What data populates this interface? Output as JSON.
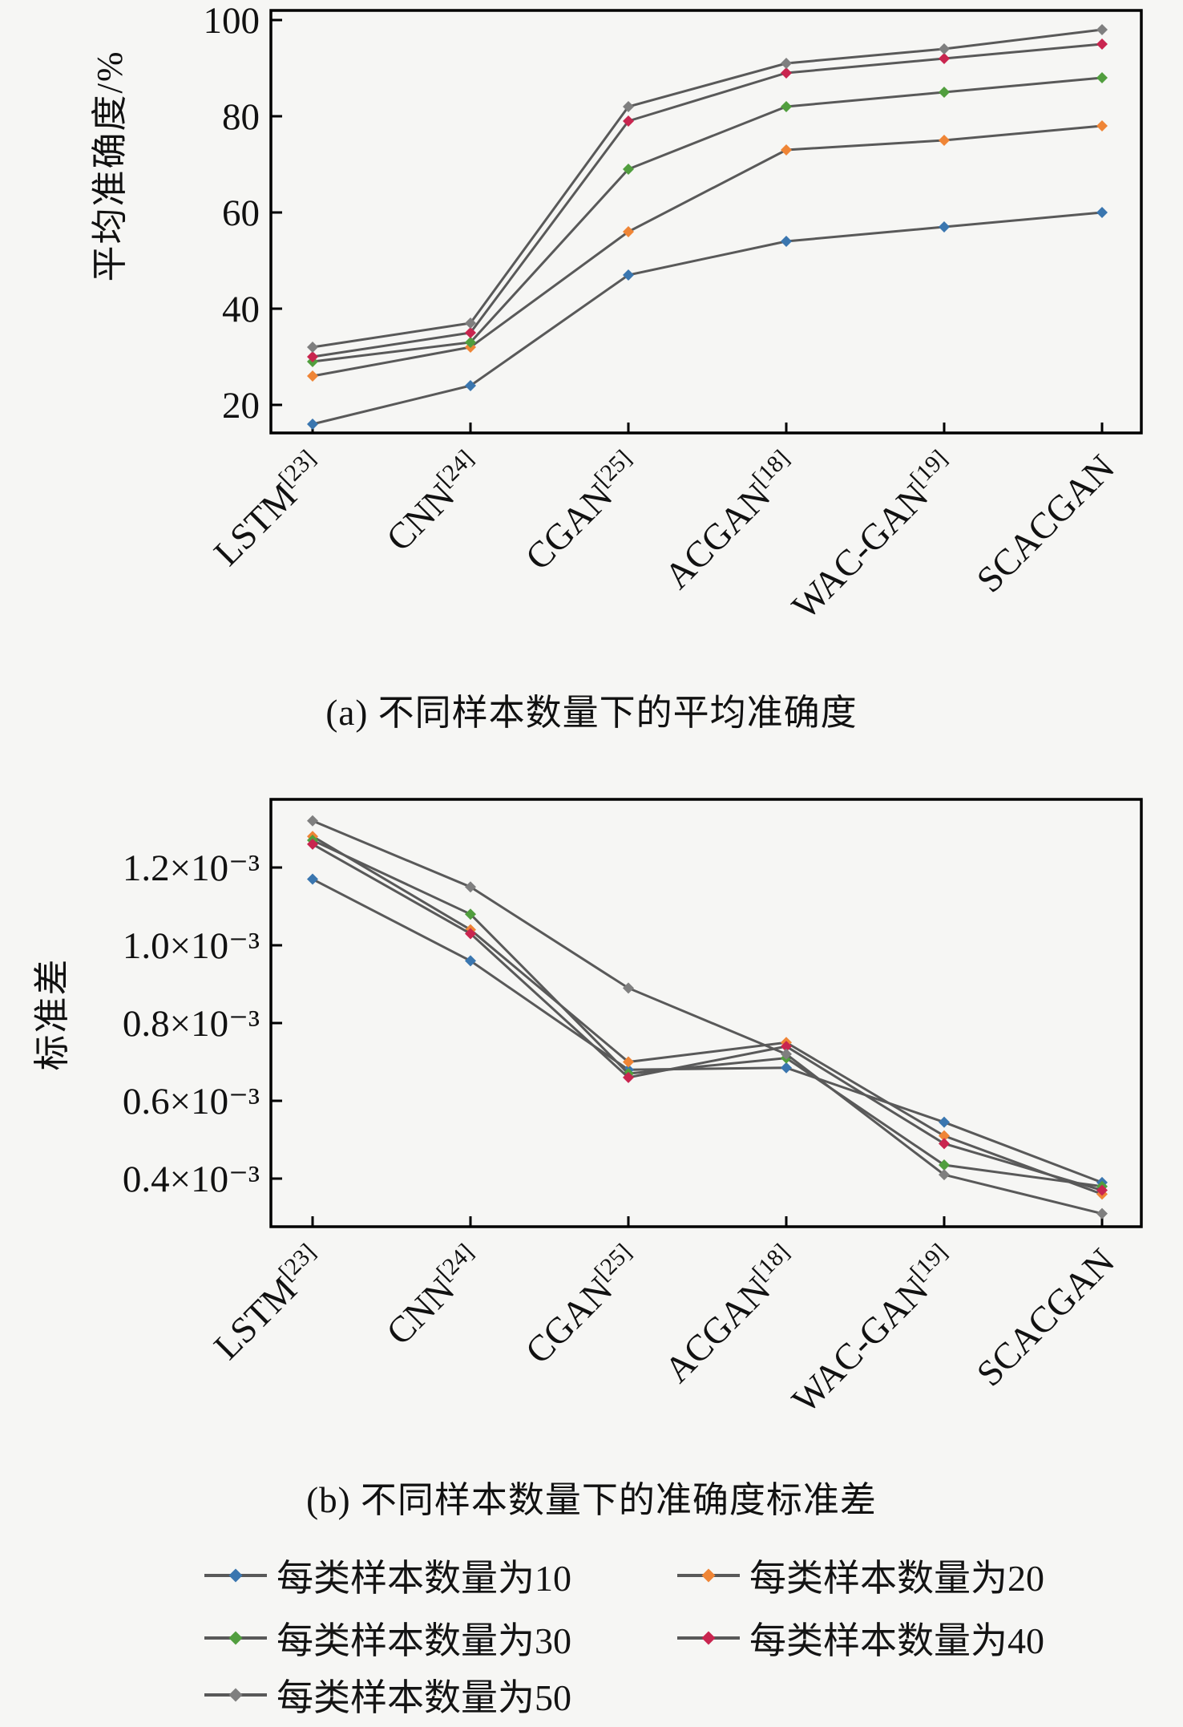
{
  "figure": {
    "background": "#f6f6f4",
    "axis_color": "#000000",
    "series_line_color": "#595959"
  },
  "captions": {
    "a": "(a) 不同样本数量下的平均准确度",
    "b": "(b) 不同样本数量下的准确度标准差"
  },
  "legend": {
    "position": "below",
    "items": [
      {
        "label": "每类样本数量为10",
        "color": "#3A76AF"
      },
      {
        "label": "每类样本数量为20",
        "color": "#EF8536"
      },
      {
        "label": "每类样本数量为30",
        "color": "#519E3E"
      },
      {
        "label": "每类样本数量为40",
        "color": "#C9254F"
      },
      {
        "label": "每类样本数量为50",
        "color": "#7F7F7F"
      }
    ]
  },
  "chart_data": [
    {
      "type": "line",
      "id": "a",
      "title": "(a) 不同样本数量下的平均准确度",
      "xlabel": "",
      "ylabel": "平均准确度/%",
      "categories": [
        "LSTM[23]",
        "CNN[24]",
        "CGAN[25]",
        "ACGAN[18]",
        "WAC-GAN[19]",
        "SCACGAN"
      ],
      "ytick_values": [
        20,
        40,
        60,
        80,
        100
      ],
      "ytick_labels": [
        "20",
        "40",
        "60",
        "80",
        "100"
      ],
      "ylim": [
        14,
        102
      ],
      "grid": false,
      "legend_position": "shared-bottom",
      "series": [
        {
          "name": "每类样本数量为10",
          "color": "#3A76AF",
          "values": [
            16,
            24,
            47,
            54,
            57,
            60
          ]
        },
        {
          "name": "每类样本数量为20",
          "color": "#EF8536",
          "values": [
            26,
            32,
            56,
            73,
            75,
            78
          ]
        },
        {
          "name": "每类样本数量为30",
          "color": "#519E3E",
          "values": [
            29,
            33,
            69,
            82,
            85,
            88
          ]
        },
        {
          "name": "每类样本数量为40",
          "color": "#C9254F",
          "values": [
            30,
            35,
            79,
            89,
            92,
            95
          ]
        },
        {
          "name": "每类样本数量为50",
          "color": "#7F7F7F",
          "values": [
            32,
            37,
            82,
            91,
            94,
            98
          ]
        }
      ]
    },
    {
      "type": "line",
      "id": "b",
      "title": "(b) 不同样本数量下的准确度标准差",
      "xlabel": "",
      "ylabel": "标准差",
      "categories": [
        "LSTM[23]",
        "CNN[24]",
        "CGAN[25]",
        "ACGAN[18]",
        "WAC-GAN[19]",
        "SCACGAN"
      ],
      "ytick_values": [
        0.4,
        0.6,
        0.8,
        1.0,
        1.2
      ],
      "ytick_labels": [
        "0.4×10⁻³",
        "0.6×10⁻³",
        "0.8×10⁻³",
        "1.0×10⁻³",
        "1.2×10⁻³"
      ],
      "ylim": [
        0.28,
        1.38
      ],
      "units": "×10⁻³",
      "grid": false,
      "legend_position": "shared-bottom",
      "series": [
        {
          "name": "每类样本数量为10",
          "color": "#3A76AF",
          "values": [
            1.17,
            0.96,
            0.68,
            0.685,
            0.545,
            0.39
          ]
        },
        {
          "name": "每类样本数量为20",
          "color": "#EF8536",
          "values": [
            1.28,
            1.04,
            0.7,
            0.75,
            0.51,
            0.36
          ]
        },
        {
          "name": "每类样本数量为30",
          "color": "#519E3E",
          "values": [
            1.27,
            1.08,
            0.67,
            0.71,
            0.435,
            0.38
          ]
        },
        {
          "name": "每类样本数量为40",
          "color": "#C9254F",
          "values": [
            1.26,
            1.03,
            0.66,
            0.74,
            0.49,
            0.37
          ]
        },
        {
          "name": "每类样本数量为50",
          "color": "#7F7F7F",
          "values": [
            1.32,
            1.15,
            0.89,
            0.72,
            0.41,
            0.31
          ]
        }
      ]
    }
  ]
}
